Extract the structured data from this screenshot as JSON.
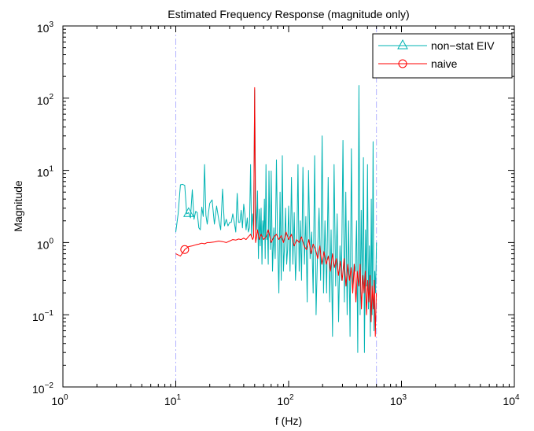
{
  "chart_data": {
    "type": "line",
    "title": "Estimated Frequency Response (magnitude only)",
    "xlabel": "f (Hz)",
    "ylabel": "Magnitude",
    "xscale": "log",
    "yscale": "log",
    "xlim": [
      1,
      10000
    ],
    "ylim": [
      0.01,
      1000
    ],
    "x_ticks": [
      {
        "value": 1,
        "base": "10",
        "exp": "0"
      },
      {
        "value": 10,
        "base": "10",
        "exp": "1"
      },
      {
        "value": 100,
        "base": "10",
        "exp": "2"
      },
      {
        "value": 1000,
        "base": "10",
        "exp": "3"
      },
      {
        "value": 10000,
        "base": "10",
        "exp": "4"
      }
    ],
    "y_ticks": [
      {
        "value": 0.01,
        "base": "10",
        "exp": "−2"
      },
      {
        "value": 0.1,
        "base": "10",
        "exp": "−1"
      },
      {
        "value": 1,
        "base": "10",
        "exp": "0"
      },
      {
        "value": 10,
        "base": "10",
        "exp": "1"
      },
      {
        "value": 100,
        "base": "10",
        "exp": "2"
      },
      {
        "value": 1000,
        "base": "10",
        "exp": "3"
      }
    ],
    "grid": false,
    "legend_position": "top-right",
    "reference_lines": {
      "orientation": "vertical",
      "style": "dash-dot",
      "color": "#b3b3ff",
      "x": [
        10,
        600
      ]
    },
    "series": [
      {
        "name": "non−stat EIV",
        "color": "#00b3b3",
        "marker": "triangle",
        "marker_x": 13,
        "x": [
          10,
          10.5,
          11,
          11.5,
          12,
          12.5,
          13,
          13.5,
          14,
          14.5,
          15,
          15.5,
          16,
          16.5,
          17,
          17.5,
          18,
          18.5,
          19,
          19.5,
          20,
          21,
          22,
          23,
          24,
          25,
          26,
          27,
          28,
          29,
          30,
          31,
          32,
          33,
          34,
          35,
          36,
          37,
          38,
          39,
          40,
          41,
          42,
          43,
          44,
          45,
          46,
          47,
          48,
          49,
          50,
          51,
          52,
          53,
          54,
          55,
          56,
          57,
          58,
          59,
          60,
          61,
          62,
          63,
          64,
          65,
          66,
          67,
          68,
          69,
          70,
          72,
          74,
          76,
          78,
          80,
          82,
          84,
          86,
          88,
          90,
          92,
          94,
          96,
          98,
          100,
          103,
          106,
          109,
          112,
          115,
          118,
          121,
          124,
          127,
          130,
          134,
          138,
          142,
          146,
          150,
          155,
          160,
          165,
          170,
          175,
          180,
          186,
          192,
          198,
          204,
          210,
          217,
          224,
          231,
          238,
          245,
          253,
          261,
          269,
          277,
          285,
          294,
          303,
          312,
          321,
          330,
          340,
          350,
          360,
          370,
          380,
          390,
          400,
          410,
          420,
          430,
          440,
          450,
          460,
          470,
          480,
          490,
          500,
          510,
          520,
          530,
          540,
          550,
          560,
          570,
          580,
          590,
          600
        ],
        "values": [
          1.4,
          2.5,
          6.3,
          6.4,
          6.2,
          2.5,
          2.6,
          2.2,
          5.4,
          2.1,
          2.7,
          2.6,
          1.6,
          1.5,
          3.1,
          2.3,
          12.0,
          2.4,
          1.8,
          2.6,
          3.5,
          3.9,
          1.8,
          3.2,
          2.1,
          1.5,
          5.5,
          1.7,
          2.1,
          1.7,
          1.9,
          1.9,
          2.5,
          1.9,
          1.4,
          4.8,
          1.9,
          1.9,
          2.8,
          1.6,
          3.4,
          2.5,
          1.5,
          2.2,
          1.4,
          1.6,
          12.0,
          1.2,
          2.5,
          1.7,
          130.0,
          3.4,
          1.5,
          5.2,
          0.6,
          2.9,
          0.9,
          3.0,
          0.5,
          2.0,
          1.2,
          4.0,
          0.6,
          12.0,
          1.1,
          1.3,
          0.5,
          9.8,
          1.7,
          0.8,
          9.8,
          0.4,
          1.6,
          0.6,
          14.0,
          0.9,
          0.2,
          5.0,
          0.3,
          16.0,
          0.4,
          0.9,
          3.0,
          0.5,
          0.8,
          3.2,
          0.4,
          8.0,
          0.5,
          2.6,
          0.3,
          0.8,
          12.0,
          0.4,
          2.0,
          0.3,
          11.0,
          0.5,
          2.3,
          0.15,
          10.0,
          0.6,
          1.4,
          0.2,
          16.0,
          0.1,
          0.6,
          3.0,
          0.3,
          30.0,
          0.2,
          2.0,
          0.2,
          8.0,
          0.15,
          1.5,
          0.05,
          12.0,
          0.25,
          2.5,
          0.08,
          0.9,
          0.3,
          26.0,
          0.15,
          5.0,
          0.1,
          2.0,
          0.05,
          20.0,
          0.2,
          0.5,
          0.4,
          2.0,
          0.03,
          150.0,
          0.1,
          2.8,
          0.2,
          15.0,
          0.03,
          1.5,
          0.25,
          12.0,
          0.12,
          0.9,
          0.05,
          4.0,
          0.1,
          25.0,
          0.06,
          0.4,
          0.2,
          1.0
        ]
      },
      {
        "name": "naive",
        "color": "#ff0000",
        "marker": "circle",
        "marker_x": 12.5,
        "x": [
          10,
          11,
          12,
          13,
          14,
          15,
          16,
          17,
          18,
          19,
          20,
          22,
          24,
          26,
          28,
          30,
          32,
          34,
          36,
          38,
          40,
          42,
          44,
          46,
          48,
          49,
          50,
          51,
          52,
          53,
          55,
          57,
          60,
          63,
          66,
          70,
          74,
          78,
          82,
          86,
          90,
          95,
          100,
          106,
          112,
          118,
          124,
          130,
          137,
          144,
          151,
          158,
          165,
          173,
          181,
          189,
          197,
          206,
          215,
          225,
          235,
          245,
          255,
          265,
          276,
          287,
          298,
          310,
          322,
          334,
          346,
          358,
          370,
          382,
          394,
          406,
          418,
          430,
          442,
          454,
          466,
          478,
          490,
          502,
          514,
          526,
          538,
          550,
          562,
          574,
          586,
          598
        ],
        "values": [
          0.7,
          0.65,
          0.8,
          0.88,
          0.9,
          0.93,
          0.95,
          0.98,
          0.96,
          1.0,
          1.0,
          1.02,
          1.05,
          1.03,
          1.0,
          1.05,
          1.1,
          1.08,
          1.12,
          1.1,
          1.15,
          1.1,
          1.2,
          1.3,
          1.1,
          1.2,
          140.0,
          1.0,
          1.2,
          1.5,
          1.1,
          1.3,
          1.1,
          1.2,
          1.5,
          1.0,
          1.2,
          1.3,
          1.1,
          1.25,
          1.0,
          1.4,
          1.1,
          1.3,
          0.9,
          1.1,
          1.0,
          1.2,
          0.9,
          0.8,
          1.1,
          0.7,
          0.95,
          0.8,
          0.6,
          0.9,
          0.5,
          0.75,
          0.5,
          0.65,
          0.4,
          0.7,
          0.45,
          0.6,
          0.35,
          0.55,
          0.3,
          0.6,
          0.25,
          0.5,
          0.3,
          0.45,
          0.2,
          0.5,
          0.15,
          0.4,
          0.25,
          0.5,
          0.12,
          0.35,
          0.2,
          0.4,
          0.1,
          0.3,
          0.15,
          0.35,
          0.08,
          0.25,
          0.12,
          0.3,
          0.05,
          0.2
        ]
      }
    ]
  }
}
